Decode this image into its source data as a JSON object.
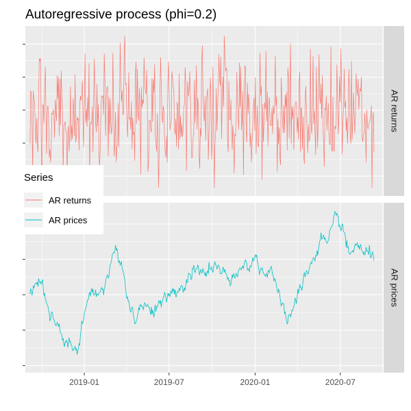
{
  "chart_data": {
    "type": "line",
    "title": "Autoregressive process (phi=0.2)",
    "facet_layout": "stacked-rows-shared-x",
    "x_axis": {
      "type": "date",
      "ticks": [
        "2019-01",
        "2019-07",
        "2020-01",
        "2020-07"
      ],
      "range": [
        "2018-08-28",
        "2020-09-30"
      ],
      "series_start": "2018-09-07",
      "series_end": "2020-09-11"
    },
    "y_tick_labels_shown": false,
    "grid": true,
    "legend": {
      "title": "Series",
      "placement": "left",
      "entries": [
        "AR returns",
        "AR prices"
      ]
    },
    "colors": {
      "AR returns": "#F8766D",
      "AR prices": "#00BFC4",
      "panel_background": "#EBEBEB",
      "strip_background": "#D9D9D9",
      "gridline": "#FFFFFF"
    },
    "panels": [
      {
        "strip_label": "AR returns",
        "series": "AR returns",
        "kind": "noise",
        "ylim": [
          -2.6,
          2.55
        ],
        "y_gridlines": [
          -2,
          -1,
          0,
          1,
          2
        ],
        "approx_sd": 0.9,
        "approx_extremes": {
          "max": 2.25,
          "min": -2.35
        }
      },
      {
        "strip_label": "AR prices",
        "series": "AR prices",
        "kind": "path",
        "ylim": [
          -22,
          26
        ],
        "y_gridlines": [
          -20,
          -10,
          0,
          10,
          20
        ],
        "anchors": [
          [
            "2018-09-07",
            0
          ],
          [
            "2018-09-20",
            4
          ],
          [
            "2018-10-05",
            3
          ],
          [
            "2018-10-20",
            -6
          ],
          [
            "2018-11-05",
            -9
          ],
          [
            "2018-11-20",
            -13
          ],
          [
            "2018-12-05",
            -15
          ],
          [
            "2018-12-20",
            -17
          ],
          [
            "2019-01-01",
            -4
          ],
          [
            "2019-01-15",
            0
          ],
          [
            "2019-02-01",
            1
          ],
          [
            "2019-02-15",
            3
          ],
          [
            "2019-03-05",
            12
          ],
          [
            "2019-03-20",
            10
          ],
          [
            "2019-04-05",
            -2
          ],
          [
            "2019-04-20",
            -6
          ],
          [
            "2019-05-05",
            -3
          ],
          [
            "2019-06-01",
            -4
          ],
          [
            "2019-06-20",
            -2
          ],
          [
            "2019-07-10",
            1
          ],
          [
            "2019-08-01",
            2
          ],
          [
            "2019-08-20",
            7
          ],
          [
            "2019-09-10",
            6
          ],
          [
            "2019-10-05",
            8
          ],
          [
            "2019-10-25",
            6
          ],
          [
            "2019-11-15",
            3
          ],
          [
            "2019-12-05",
            8
          ],
          [
            "2020-01-01",
            10
          ],
          [
            "2020-01-20",
            6
          ],
          [
            "2020-02-05",
            8
          ],
          [
            "2020-02-20",
            -1
          ],
          [
            "2020-03-10",
            -7
          ],
          [
            "2020-03-25",
            -3
          ],
          [
            "2020-04-15",
            5
          ],
          [
            "2020-05-05",
            10
          ],
          [
            "2020-05-20",
            16
          ],
          [
            "2020-06-05",
            14
          ],
          [
            "2020-06-20",
            21
          ],
          [
            "2020-07-05",
            20
          ],
          [
            "2020-07-20",
            10
          ],
          [
            "2020-08-05",
            15
          ],
          [
            "2020-08-20",
            11
          ],
          [
            "2020-09-11",
            12
          ]
        ]
      }
    ]
  }
}
